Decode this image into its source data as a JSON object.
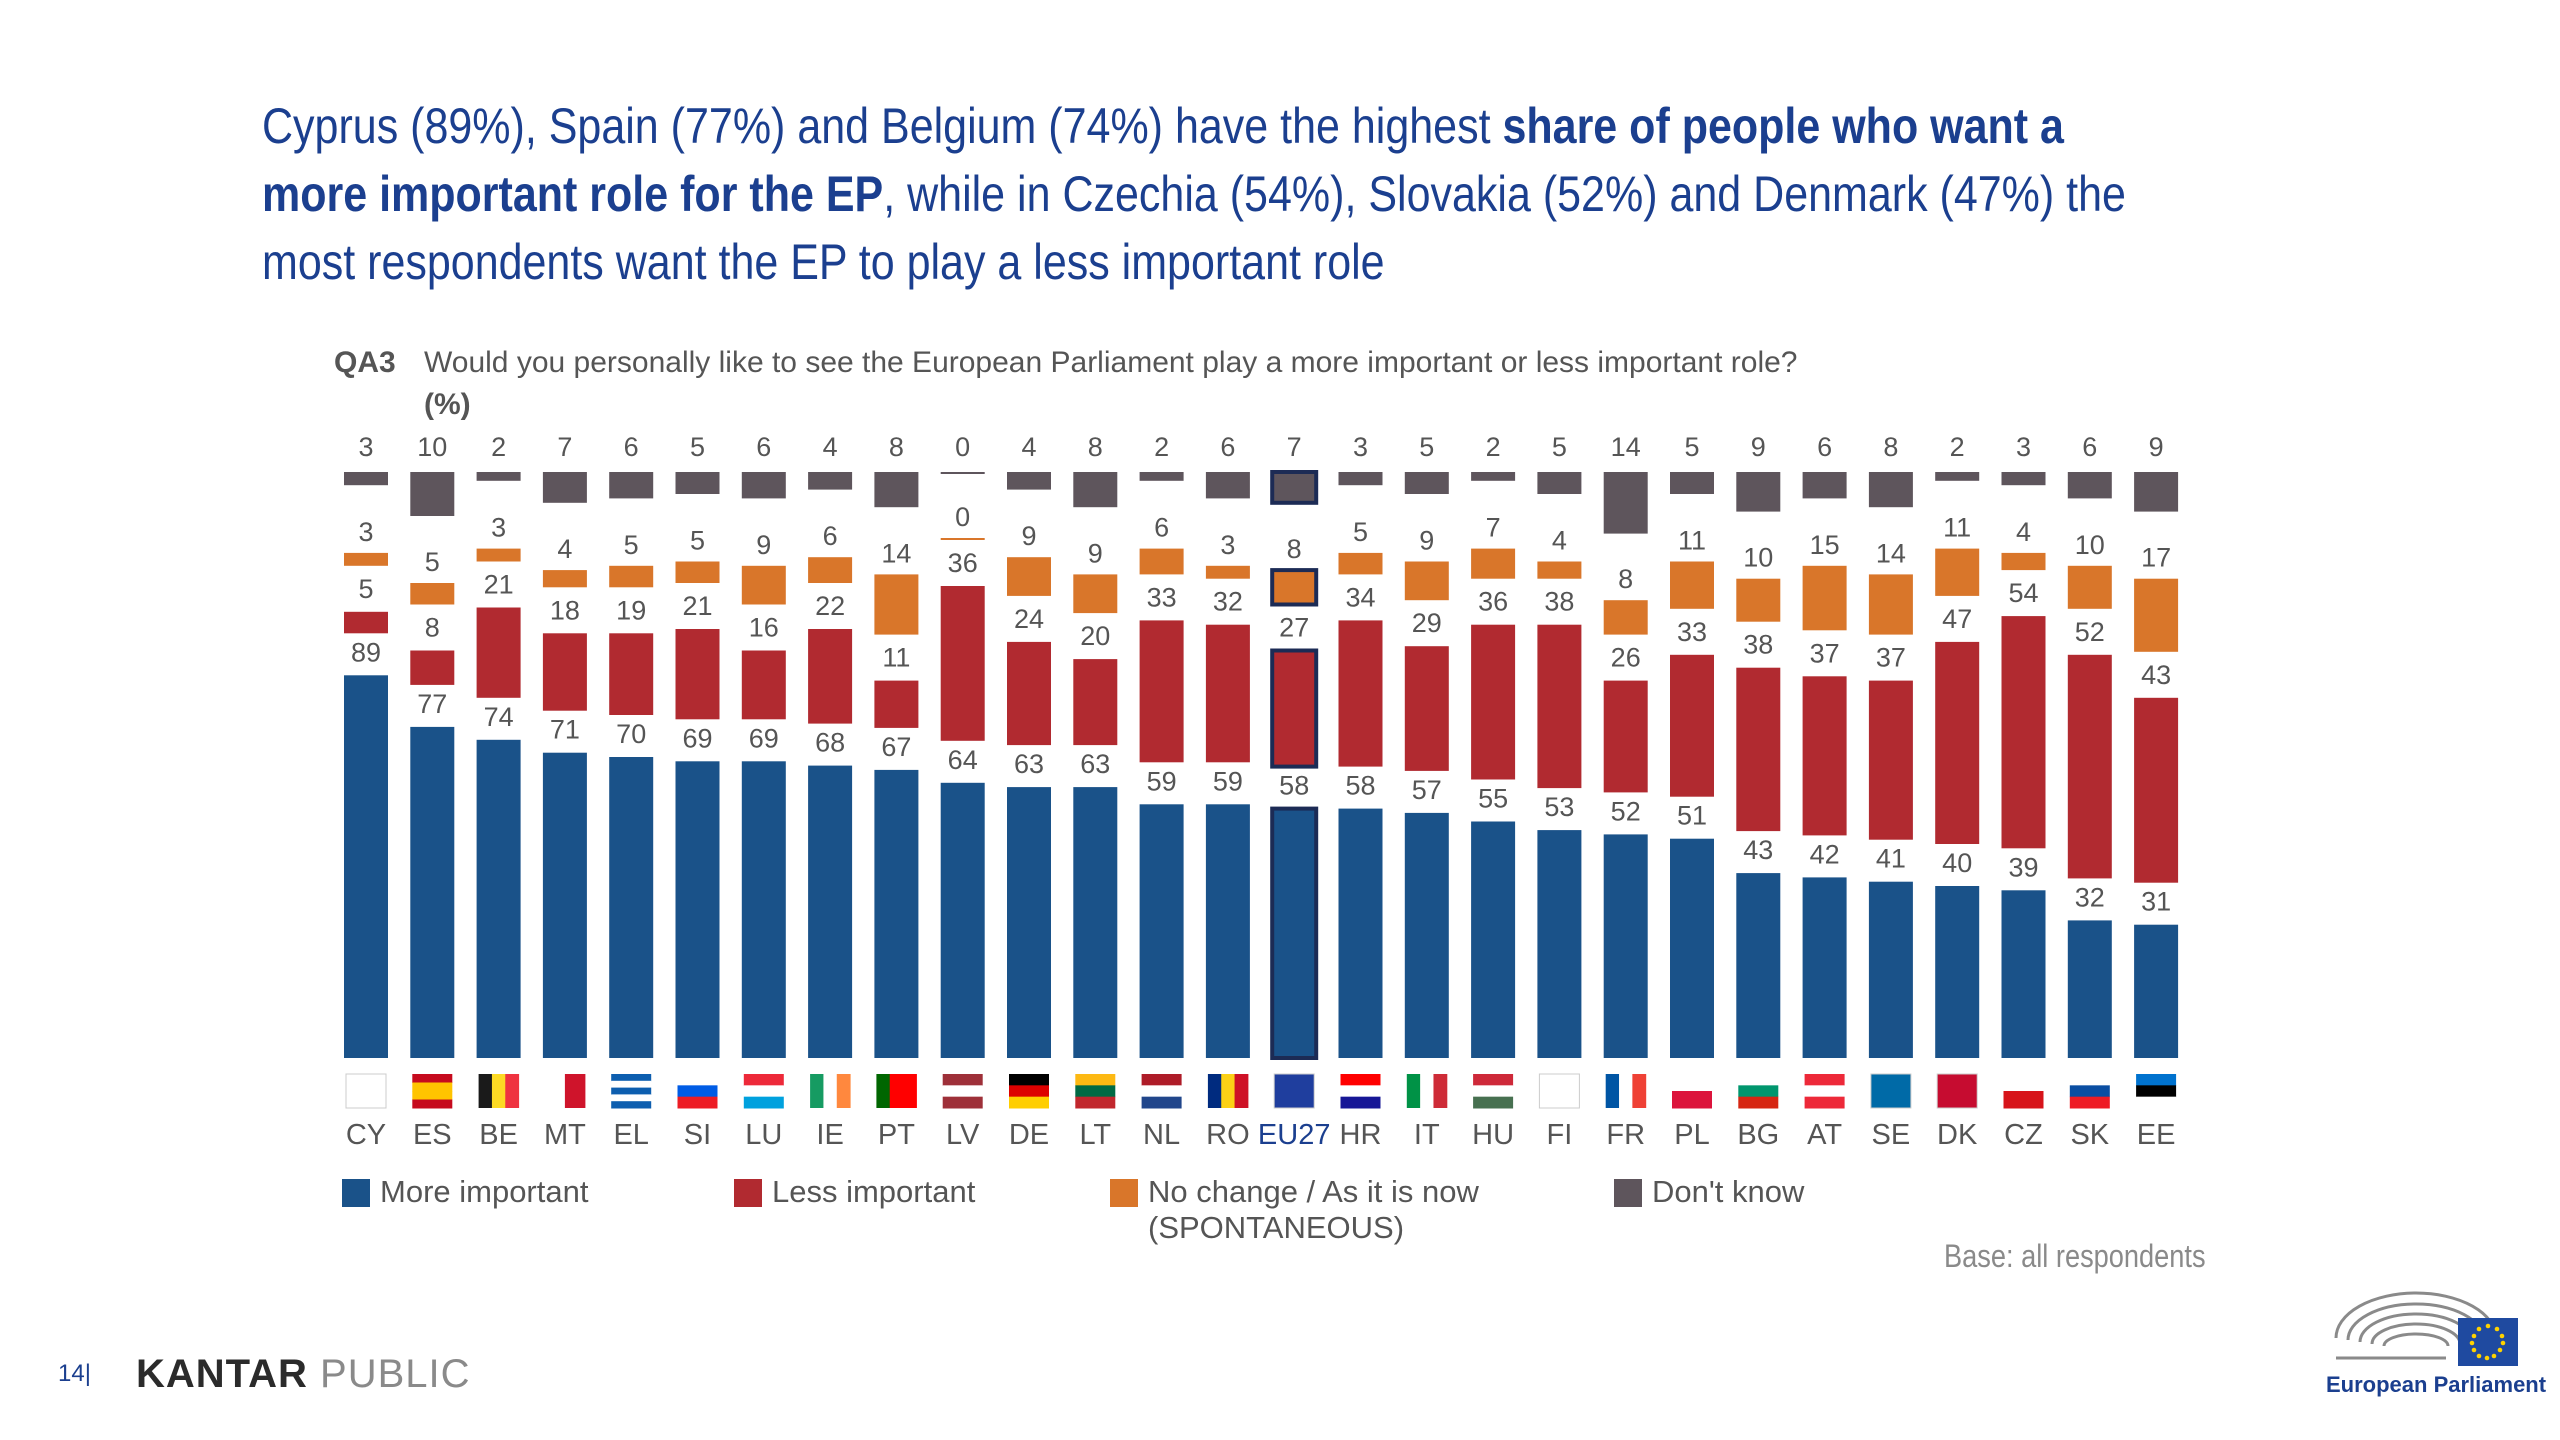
{
  "headline": {
    "part1": "Cyprus (89%), Spain (77%) and Belgium (74%) have the highest ",
    "bold1": "share of people who want a more important role for the EP",
    "part2": ", while in Czechia (54%), Slovakia (52%) and Denmark (47%) the most respondents want the EP to play a less important role"
  },
  "question": {
    "code": "QA3",
    "text": "Would you personally like to see the European Parliament play a more important or less important role?",
    "unit": "(%)"
  },
  "chart_data": {
    "type": "bar",
    "stacked": true,
    "categories": [
      "CY",
      "ES",
      "BE",
      "MT",
      "EL",
      "SI",
      "LU",
      "IE",
      "PT",
      "LV",
      "DE",
      "LT",
      "NL",
      "RO",
      "EU27",
      "HR",
      "IT",
      "HU",
      "FI",
      "FR",
      "PL",
      "BG",
      "AT",
      "SE",
      "DK",
      "CZ",
      "SK",
      "EE"
    ],
    "highlight": "EU27",
    "series": [
      {
        "name": "More important",
        "color": "#1a5289",
        "values": [
          89,
          77,
          74,
          71,
          70,
          69,
          69,
          68,
          67,
          64,
          63,
          63,
          59,
          59,
          58,
          58,
          57,
          55,
          53,
          52,
          51,
          43,
          42,
          41,
          40,
          39,
          32,
          31
        ]
      },
      {
        "name": "Less important",
        "color": "#b12a30",
        "values": [
          5,
          8,
          21,
          18,
          19,
          21,
          16,
          22,
          11,
          36,
          24,
          20,
          33,
          32,
          27,
          34,
          29,
          36,
          38,
          26,
          33,
          38,
          37,
          37,
          47,
          54,
          52,
          43
        ]
      },
      {
        "name": "No change / As it is now (SPONTANEOUS)",
        "color": "#d9762a",
        "values": [
          3,
          5,
          3,
          4,
          5,
          5,
          9,
          6,
          14,
          0,
          9,
          9,
          6,
          3,
          8,
          5,
          9,
          7,
          4,
          8,
          11,
          10,
          15,
          14,
          11,
          4,
          10,
          17
        ]
      },
      {
        "name": "Don't know",
        "color": "#5e555c",
        "values": [
          3,
          10,
          2,
          7,
          6,
          5,
          6,
          4,
          8,
          0,
          4,
          8,
          2,
          6,
          7,
          3,
          5,
          2,
          5,
          14,
          5,
          9,
          6,
          8,
          2,
          3,
          6,
          9
        ]
      }
    ],
    "ylim": [
      0,
      100
    ]
  },
  "legend": {
    "more": "More important",
    "less": "Less important",
    "nochange_line1": "No change / As it is now",
    "nochange_line2": "(SPONTANEOUS)",
    "dontknow": "Don't know"
  },
  "base": "Base: all respondents",
  "footer": {
    "page": "14|",
    "brand_bold": "KANTAR",
    "brand_light": "PUBLIC",
    "ep_name": "European Parliament"
  }
}
